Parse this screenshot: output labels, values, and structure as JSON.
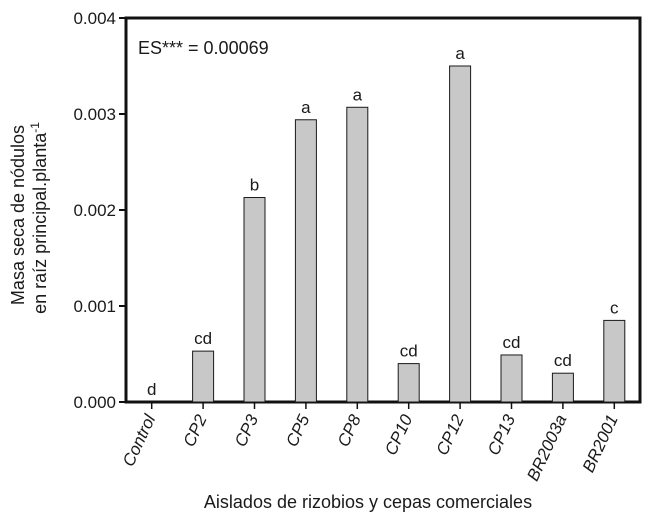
{
  "chart_data": {
    "type": "bar",
    "xlabel": "Aislados de rizobios y cepas comerciales",
    "ylabel_line1": "Masa seca de  nódulos",
    "ylabel_line2": "en raíz principal.planta",
    "ylabel_sup": "-1",
    "annotation": "ES*** = 0.00069",
    "ylim": [
      0,
      0.004
    ],
    "yticks": [
      {
        "value": 0,
        "label": "0.000"
      },
      {
        "value": 0.001,
        "label": "0.001"
      },
      {
        "value": 0.002,
        "label": "0.002"
      },
      {
        "value": 0.003,
        "label": "0.003"
      },
      {
        "value": 0.004,
        "label": "0.004"
      }
    ],
    "categories": [
      "Control",
      "CP2",
      "CP3",
      "CP5",
      "CP8",
      "CP10",
      "CP12",
      "CP13",
      "BR2003a",
      "BR2001"
    ],
    "values": [
      0.0,
      0.00053,
      0.00213,
      0.00294,
      0.00307,
      0.0004,
      0.0035,
      0.00049,
      0.0003,
      0.00085
    ],
    "significance": [
      "d",
      "cd",
      "b",
      "a",
      "a",
      "cd",
      "a",
      "cd",
      "cd",
      "c"
    ],
    "bar_color": "#c8c8c8",
    "bar_stroke": "#1a1a1a",
    "grid": false
  }
}
